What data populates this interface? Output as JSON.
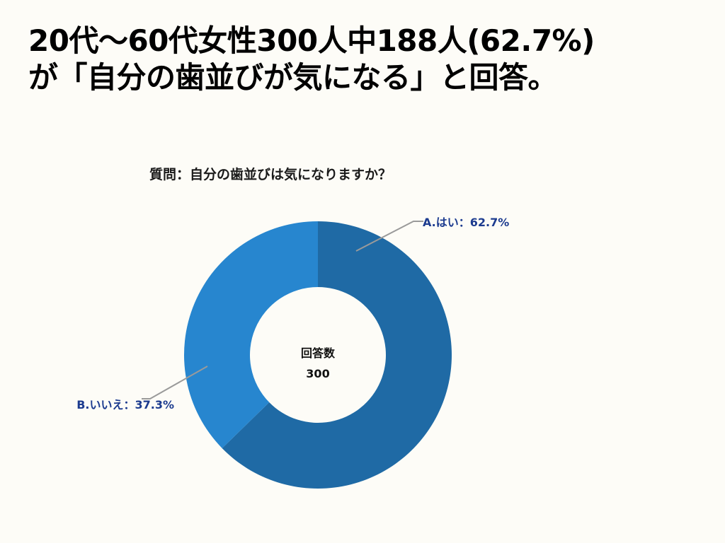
{
  "headline": {
    "line1": "20代〜60代女性300人中188人(62.7%)",
    "line2": "が「自分の歯並びが気になる」と回答。"
  },
  "chart_data": {
    "type": "pie",
    "question": "質問：自分の歯並びは気になりますか？",
    "center_label": "回答数",
    "total": 300,
    "slices": [
      {
        "label": "A.はい：62.7%",
        "value": 62.7,
        "color": "#1f6aa5"
      },
      {
        "label": "B.いいえ：37.3%",
        "value": 37.3,
        "color": "#2786cf"
      }
    ]
  },
  "colors": {
    "background": "#fdfcf7",
    "label_text": "#1c3b8f",
    "leader_line": "#9a9a9a"
  }
}
